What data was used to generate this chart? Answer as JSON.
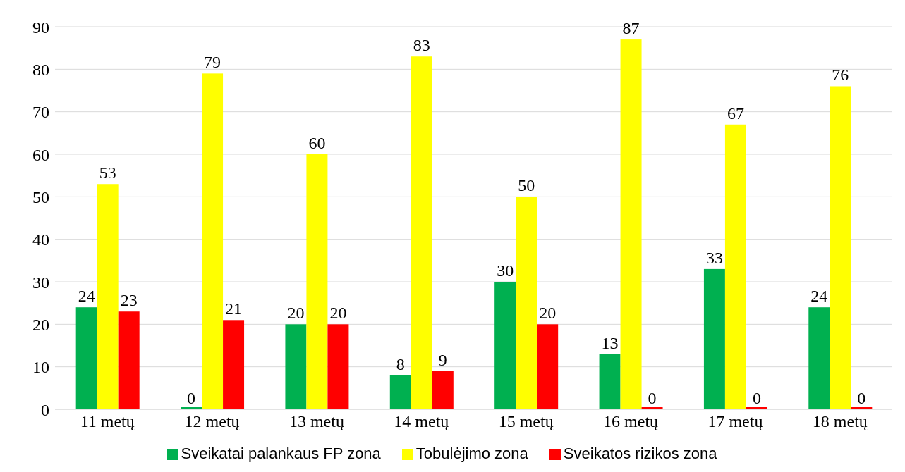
{
  "chart_data": {
    "type": "bar",
    "categories": [
      "11 metų",
      "12 metų",
      "13 metų",
      "14 metų",
      "15 metų",
      "16 metų",
      "17 metų",
      "18 metų"
    ],
    "series": [
      {
        "name": "Sveikatai palankaus FP zona",
        "color": "#00b050",
        "values": [
          24,
          0,
          20,
          8,
          30,
          13,
          33,
          24
        ]
      },
      {
        "name": "Tobulėjimo zona",
        "color": "#ffff00",
        "values": [
          53,
          79,
          60,
          83,
          50,
          87,
          67,
          76
        ]
      },
      {
        "name": "Sveikatos rizikos zona",
        "color": "#ff0000",
        "values": [
          23,
          21,
          20,
          9,
          20,
          0,
          0,
          0
        ]
      }
    ],
    "ylim": [
      0,
      90
    ],
    "yticks": [
      0,
      10,
      20,
      30,
      40,
      50,
      60,
      70,
      80,
      90
    ],
    "grid": "y",
    "legend": "bottom",
    "data_labels": true
  }
}
